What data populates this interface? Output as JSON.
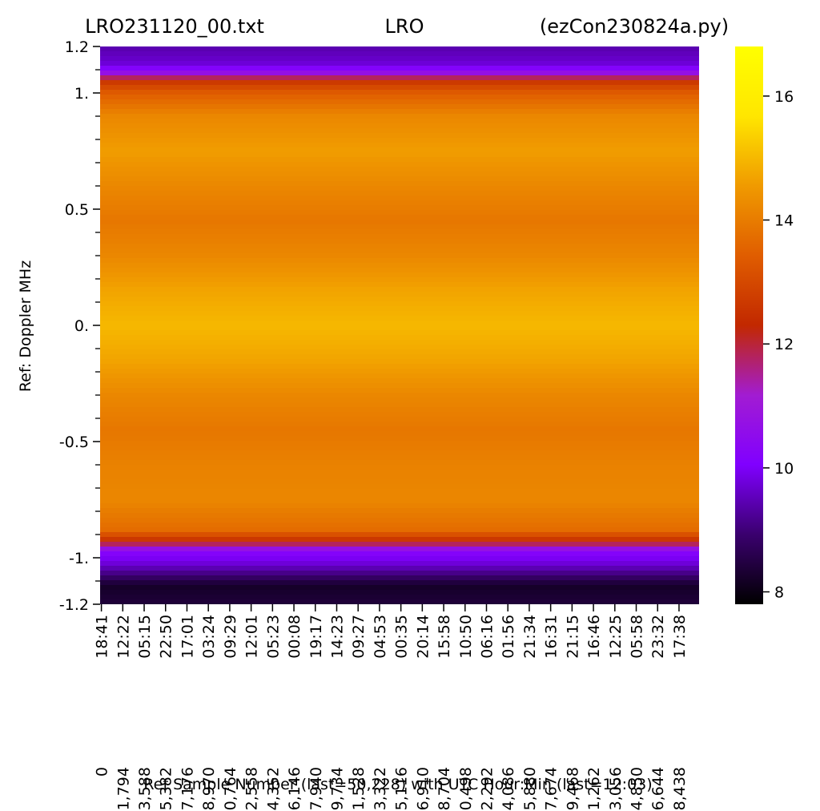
{
  "chart_data": {
    "type": "heatmap",
    "title_left": "LRO231120_00.txt",
    "title_center": "LRO",
    "title_right": "(ezCon230824a.py)",
    "ylabel": "Ref:  Doppler MHz",
    "xlabel": "Ref Sample Number (last=50,228) with UTC Hour:Min (last=12:03)",
    "ylim": [
      -1.2,
      1.2
    ],
    "y_tick_labels": [
      {
        "value": 1.2,
        "label": "1.2"
      },
      {
        "value": 1.0,
        "label": "1."
      },
      {
        "value": 0.5,
        "label": "0.5"
      },
      {
        "value": 0.0,
        "label": "0."
      },
      {
        "value": -0.5,
        "label": "-0.5"
      },
      {
        "value": -1.0,
        "label": "-1."
      },
      {
        "value": -1.2,
        "label": "-1.2"
      }
    ],
    "y_minor_ticks": [
      1.1,
      0.9,
      0.8,
      0.7,
      0.6,
      0.4,
      0.3,
      0.2,
      0.1,
      -0.1,
      -0.2,
      -0.3,
      -0.4,
      -0.6,
      -0.7,
      -0.8,
      -0.9,
      -1.1
    ],
    "x_last_sample": 50228,
    "x_ticks": [
      {
        "sample": 0,
        "label": "0",
        "utc": "18:41"
      },
      {
        "sample": 1794,
        "label": "1,794",
        "utc": "12:22"
      },
      {
        "sample": 3588,
        "label": "3,588",
        "utc": "05:15"
      },
      {
        "sample": 5382,
        "label": "5,382",
        "utc": "22:50"
      },
      {
        "sample": 7176,
        "label": "7,176",
        "utc": "17:01"
      },
      {
        "sample": 8970,
        "label": "8,970",
        "utc": "03:24"
      },
      {
        "sample": 10764,
        "label": "10,764",
        "utc": "09:29"
      },
      {
        "sample": 12558,
        "label": "12,558",
        "utc": "12:01"
      },
      {
        "sample": 14352,
        "label": "14,352",
        "utc": "05:23"
      },
      {
        "sample": 16146,
        "label": "16,146",
        "utc": "00:08"
      },
      {
        "sample": 17940,
        "label": "17,940",
        "utc": "19:17"
      },
      {
        "sample": 19734,
        "label": "19,734",
        "utc": "14:23"
      },
      {
        "sample": 21528,
        "label": "21,528",
        "utc": "09:27"
      },
      {
        "sample": 23322,
        "label": "23,322",
        "utc": "04:53"
      },
      {
        "sample": 25116,
        "label": "25,116",
        "utc": "00:35"
      },
      {
        "sample": 26910,
        "label": "26,910",
        "utc": "20:14"
      },
      {
        "sample": 28704,
        "label": "28,704",
        "utc": "15:58"
      },
      {
        "sample": 30498,
        "label": "30,498",
        "utc": "10:50"
      },
      {
        "sample": 32292,
        "label": "32,292",
        "utc": "06:16"
      },
      {
        "sample": 34086,
        "label": "34,086",
        "utc": "01:56"
      },
      {
        "sample": 35880,
        "label": "35,880",
        "utc": "21:34"
      },
      {
        "sample": 37674,
        "label": "37,674",
        "utc": "16:31"
      },
      {
        "sample": 39468,
        "label": "39,468",
        "utc": "21:15"
      },
      {
        "sample": 41262,
        "label": "41,262",
        "utc": "16:46"
      },
      {
        "sample": 43056,
        "label": "43,056",
        "utc": "12:25"
      },
      {
        "sample": 44850,
        "label": "44,850",
        "utc": "05:58"
      },
      {
        "sample": 46644,
        "label": "46,644",
        "utc": "23:32"
      },
      {
        "sample": 48438,
        "label": "48,438",
        "utc": "17:38"
      }
    ],
    "colorbar": {
      "range": [
        7.8,
        16.8
      ],
      "ticks": [
        {
          "value": 8,
          "label": "8"
        },
        {
          "value": 10,
          "label": "10"
        },
        {
          "value": 12,
          "label": "12"
        },
        {
          "value": 14,
          "label": "14"
        },
        {
          "value": 16,
          "label": "16"
        }
      ],
      "colormap": [
        "#000000",
        "#3a006e",
        "#8000ff",
        "#a21cd2",
        "#c22800",
        "#e05d00",
        "#f09a00",
        "#ffe600",
        "#ffff00"
      ]
    },
    "profile_by_doppler": [
      {
        "mhz": 1.2,
        "value": 9.4
      },
      {
        "mhz": 1.13,
        "value": 9.7
      },
      {
        "mhz": 1.09,
        "value": 10.5
      },
      {
        "mhz": 1.05,
        "value": 12.6
      },
      {
        "mhz": 1.0,
        "value": 13.4
      },
      {
        "mhz": 0.9,
        "value": 14.2
      },
      {
        "mhz": 0.75,
        "value": 14.6
      },
      {
        "mhz": 0.6,
        "value": 14.2
      },
      {
        "mhz": 0.45,
        "value": 13.9
      },
      {
        "mhz": 0.3,
        "value": 14.2
      },
      {
        "mhz": 0.15,
        "value": 14.7
      },
      {
        "mhz": 0.0,
        "value": 15.0
      },
      {
        "mhz": -0.15,
        "value": 14.7
      },
      {
        "mhz": -0.3,
        "value": 14.2
      },
      {
        "mhz": -0.45,
        "value": 13.9
      },
      {
        "mhz": -0.6,
        "value": 14.1
      },
      {
        "mhz": -0.75,
        "value": 14.2
      },
      {
        "mhz": -0.88,
        "value": 13.7
      },
      {
        "mhz": -0.93,
        "value": 12.4
      },
      {
        "mhz": -0.97,
        "value": 10.3
      },
      {
        "mhz": -1.03,
        "value": 9.7
      },
      {
        "mhz": -1.08,
        "value": 8.9
      },
      {
        "mhz": -1.12,
        "value": 8.2
      },
      {
        "mhz": -1.2,
        "value": 8.4
      }
    ],
    "grid": false
  }
}
